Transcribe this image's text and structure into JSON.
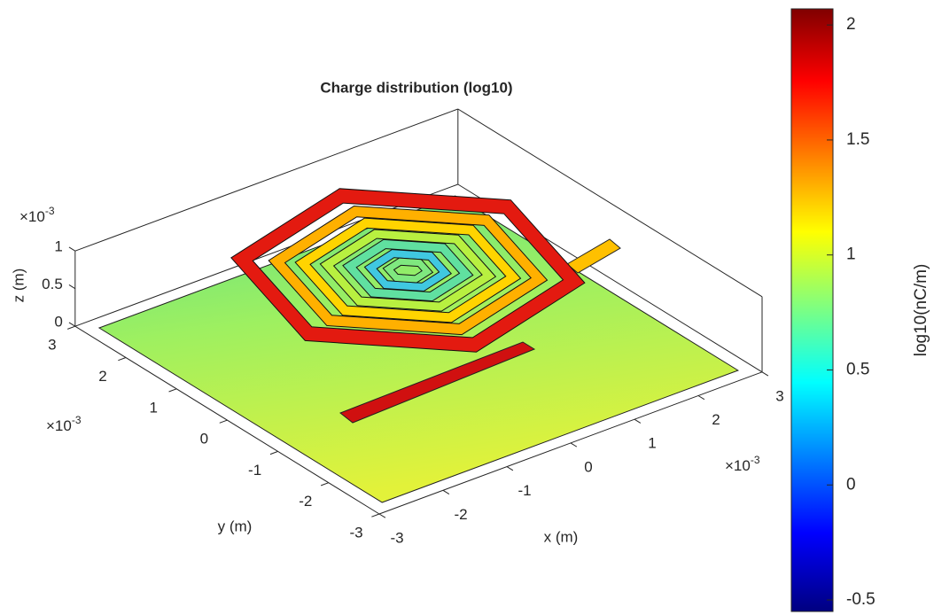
{
  "chart_data": {
    "type": "surface3d",
    "title": "Charge distribution (log10)",
    "xlabel": "x (m)",
    "ylabel": "y (m)",
    "zlabel": "z (m)",
    "xlim": [
      -3,
      3
    ],
    "xticks": [
      -3,
      -2,
      -1,
      0,
      1,
      2,
      3
    ],
    "ylim": [
      -3,
      3
    ],
    "yticks": [
      -3,
      -2,
      -1,
      0,
      1,
      2,
      3
    ],
    "zlim": [
      0,
      1
    ],
    "zticks": [
      0,
      0.5,
      1
    ],
    "x_exponent": {
      "base": "×10",
      "power": "-3"
    },
    "y_exponent": {
      "base": "×10",
      "power": "-3"
    },
    "z_exponent": {
      "base": "×10",
      "power": "-3"
    },
    "colorbar": {
      "label": "log10(nC/m)",
      "clim": [
        -0.55,
        2.07
      ],
      "ticks": [
        -0.5,
        0,
        0.5,
        1,
        1.5,
        2
      ],
      "colormap": "jet"
    }
  }
}
